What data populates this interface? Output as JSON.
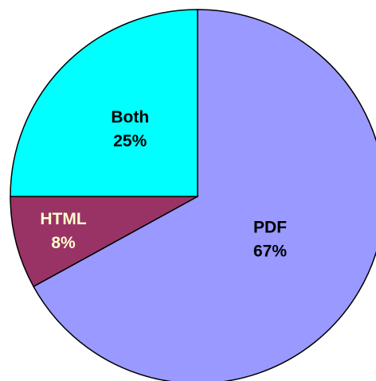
{
  "chart_data": {
    "type": "pie",
    "categories": [
      "PDF",
      "HTML",
      "Both"
    ],
    "values": [
      67,
      8,
      25
    ],
    "value_labels": [
      "67%",
      "8%",
      "25%"
    ],
    "colors": [
      "#9999ff",
      "#993366",
      "#00ffff"
    ],
    "label_colors": [
      "#000000",
      "#ffffcc",
      "#000000"
    ]
  }
}
